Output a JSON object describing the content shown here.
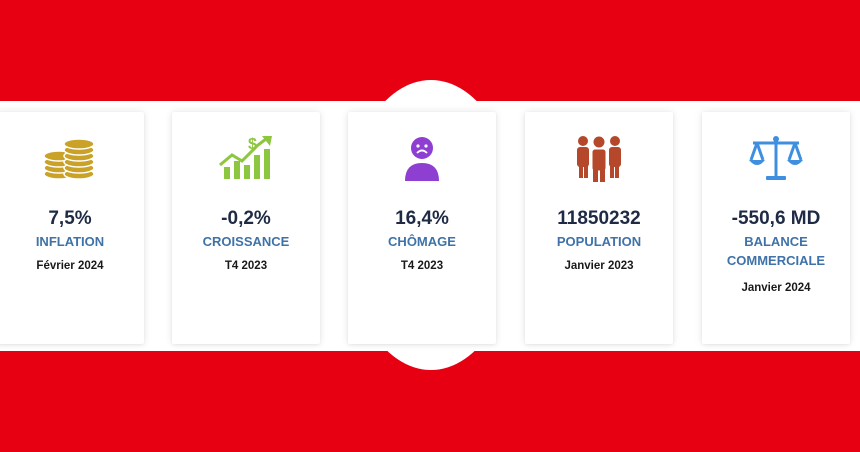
{
  "cards": [
    {
      "icon": "coins-icon",
      "value": "7,5%",
      "label": "INFLATION",
      "date": "Février 2024",
      "icon_color": "#c9a227"
    },
    {
      "icon": "growth-chart-icon",
      "value": "-0,2%",
      "label": "CROISSANCE",
      "date": "T4 2023",
      "icon_color": "#8dc63f"
    },
    {
      "icon": "sad-person-icon",
      "value": "16,4%",
      "label": "CHÔMAGE",
      "date": "T4 2023",
      "icon_color": "#8e3fd1"
    },
    {
      "icon": "people-group-icon",
      "value": "11850232",
      "label": "POPULATION",
      "date": "Janvier 2023",
      "icon_color": "#b5472a"
    },
    {
      "icon": "balance-scale-icon",
      "value": "-550,6 MD",
      "label_line1": "BALANCE",
      "label_line2": "COMMERCIALE",
      "date": "Janvier 2024",
      "icon_color": "#3f8fe0"
    }
  ],
  "colors": {
    "background_red": "#e60012",
    "value_text": "#1f2a44",
    "label_text": "#3e72a8"
  }
}
